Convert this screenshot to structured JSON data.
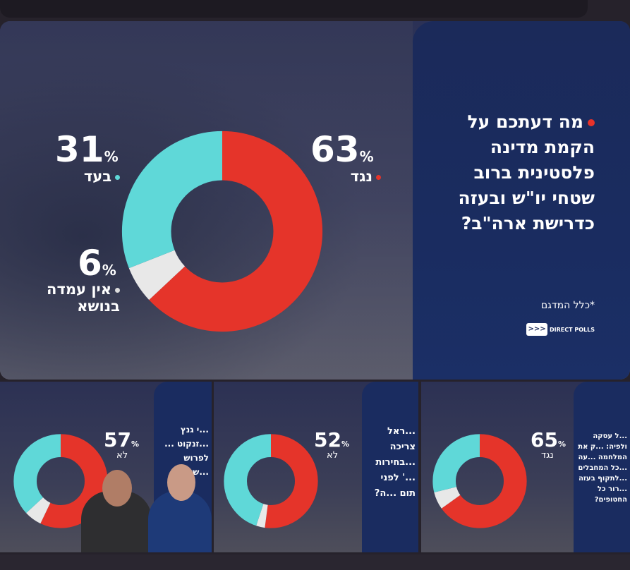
{
  "main_poll": {
    "question": "מה דעתכם על הקמת מדינה פלסטינית ברוב שטחי יו\"ש ובעזה כדרישת ארה\"ב?",
    "note": "*כלל המדגם",
    "logo": "DIRECT POLLS",
    "colors": {
      "against": "#e5342a",
      "for": "#5fd8d8",
      "no_opinion": "#e8e8e8"
    },
    "results": [
      {
        "label": "נגד",
        "value": 63,
        "display": "63"
      },
      {
        "label": "בעד",
        "value": 31,
        "display": "31"
      },
      {
        "label": "אין עמדה בנושא",
        "value": 6,
        "display": "6"
      }
    ]
  },
  "thumbnails": [
    {
      "question": "...י גנץ ...זנקוט ... לפרוש ...שלה?",
      "main_label": "לא",
      "main_value": "57",
      "slices": [
        57,
        37,
        6
      ]
    },
    {
      "question": "...ראל צריכה ...בחירות ...' לפני תום ...ה?",
      "main_label": "לא",
      "main_value": "52",
      "slices": [
        52,
        45,
        3
      ]
    },
    {
      "question": "...ל עסקה ולפיה: ...ק את המלחמה ...עה ...כל המחבלים ...לתקוף בעזה ...רור כל החטופים?",
      "main_label": "נגד",
      "main_value": "65",
      "slices": [
        65,
        29,
        6
      ]
    }
  ],
  "percent_sign": "%"
}
